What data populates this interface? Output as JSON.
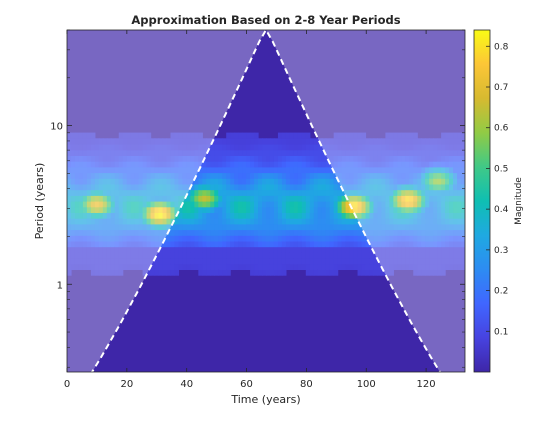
{
  "chart_data": {
    "type": "heatmap",
    "title": "Approximation Based on 2-8 Year Periods",
    "xlabel": "Time (years)",
    "ylabel": "Period (years)",
    "xlim": [
      0,
      133
    ],
    "ylim_period": [
      0.28,
      40
    ],
    "yscale": "log",
    "x_ticks": [
      0,
      20,
      40,
      60,
      80,
      100,
      120
    ],
    "y_ticks": [
      1,
      10
    ],
    "colorbar": {
      "label": "Magnitude",
      "ticks": [
        0.1,
        0.2,
        0.3,
        0.4,
        0.5,
        0.6,
        0.7,
        0.8
      ],
      "range": [
        0.0,
        0.84
      ],
      "colormap": "parula"
    },
    "band": {
      "period_min": 2,
      "period_max": 8,
      "peak_period": 3.2,
      "peak_magnitude": 0.84
    },
    "cone_of_influence": {
      "style": "white-dashed",
      "apex_x": 66,
      "apex_period": 40
    },
    "hotspots": [
      {
        "x": 10,
        "period": 3.2,
        "magnitude": 0.72
      },
      {
        "x": 31,
        "period": 2.8,
        "magnitude": 0.84
      },
      {
        "x": 46,
        "period": 3.5,
        "magnitude": 0.65
      },
      {
        "x": 96,
        "period": 3.1,
        "magnitude": 0.82
      },
      {
        "x": 114,
        "period": 3.4,
        "magnitude": 0.8
      },
      {
        "x": 124,
        "period": 4.5,
        "magnitude": 0.6
      }
    ]
  }
}
